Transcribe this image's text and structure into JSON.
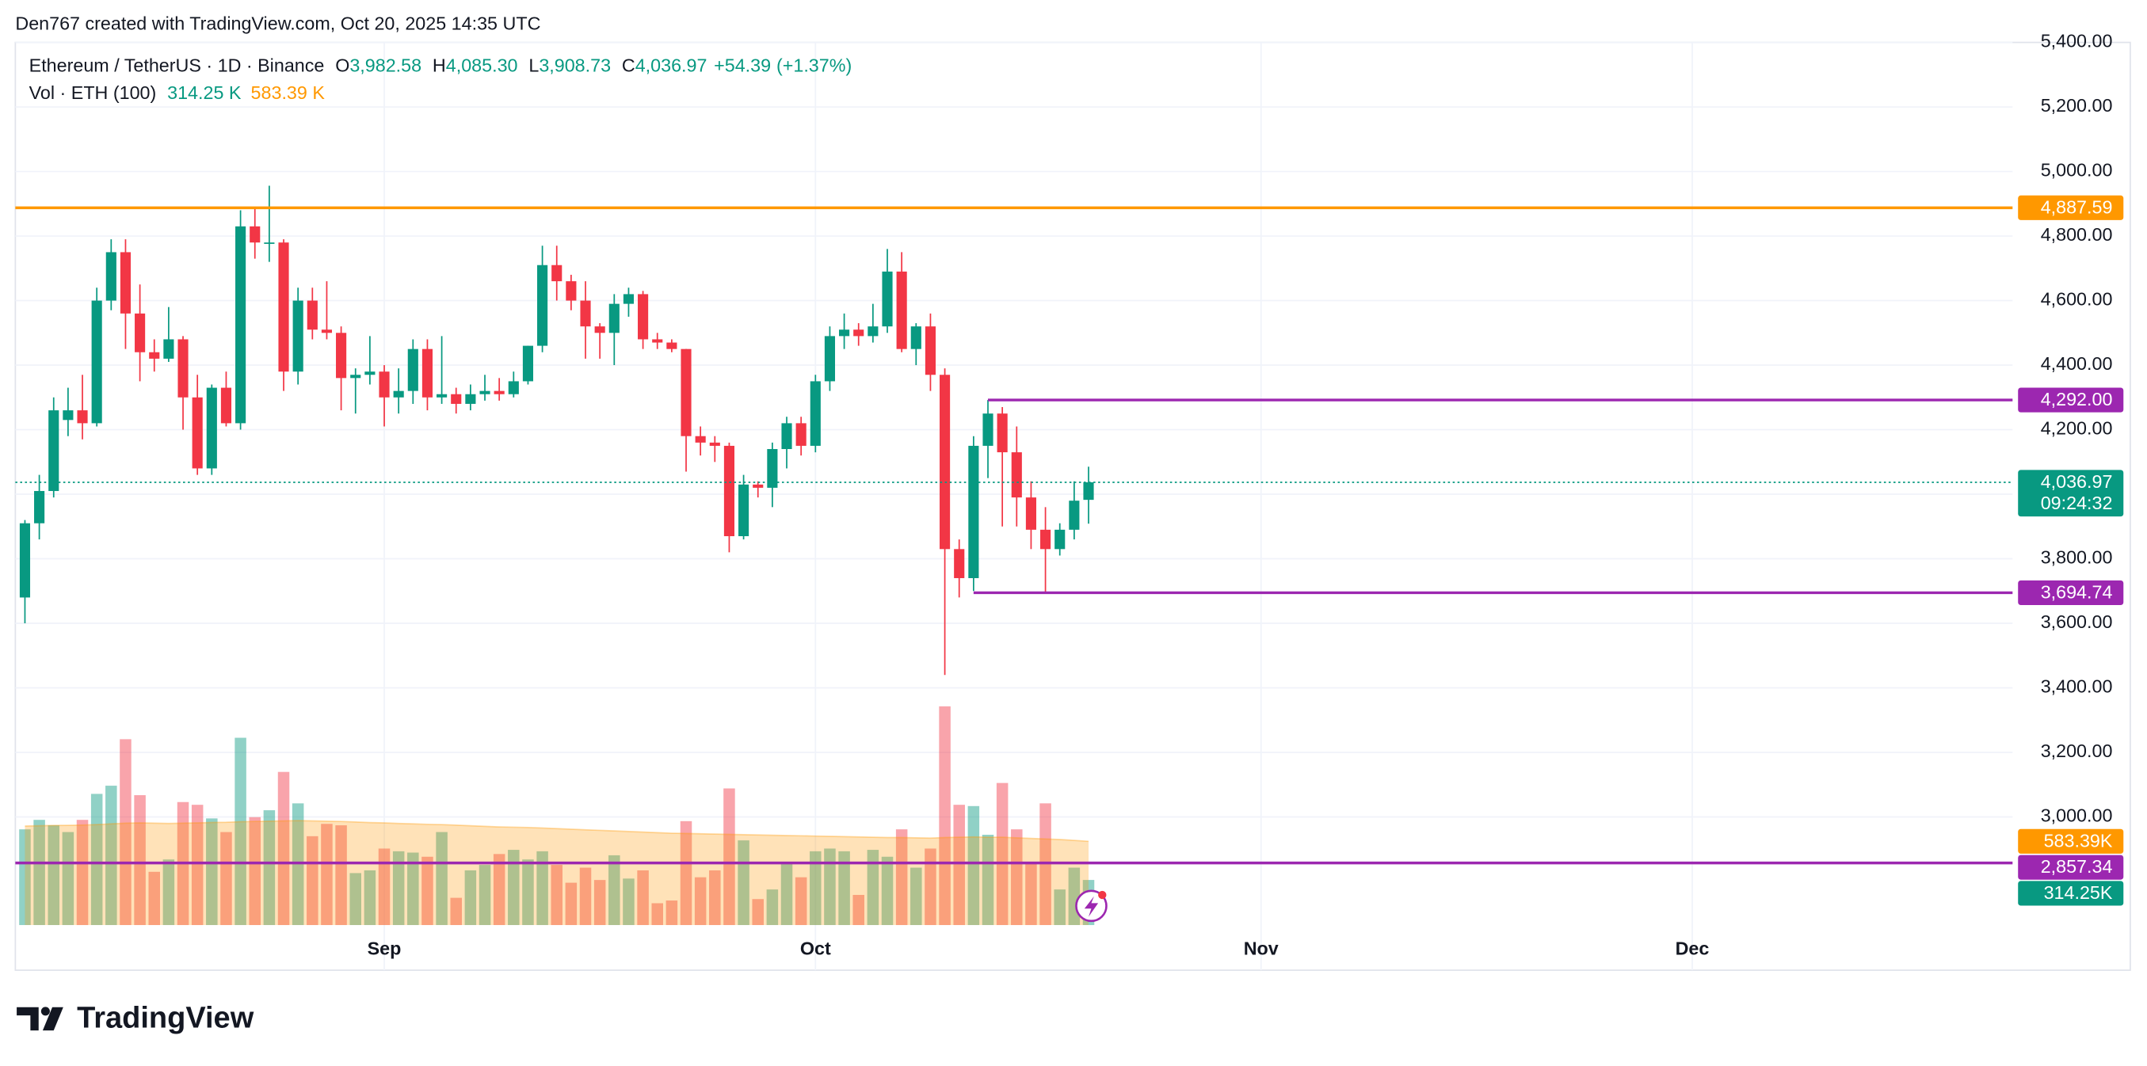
{
  "chart_data": {
    "type": "candlestick",
    "attribution": "Den767 created with TradingView.com, Oct 20, 2025 14:35 UTC",
    "brand": "TradingView",
    "legend": {
      "symbol": "Ethereum / TetherUS · 1D · Binance",
      "fields": [
        {
          "key": "O",
          "value": 3982.58,
          "label": "3,982.58"
        },
        {
          "key": "H",
          "value": 4085.3,
          "label": "4,085.30"
        },
        {
          "key": "L",
          "value": 3908.73,
          "label": "3,908.73"
        },
        {
          "key": "C",
          "value": 4036.97,
          "label": "4,036.97"
        }
      ],
      "change": {
        "value": 54.39,
        "label": "+54.39"
      },
      "change_pct": {
        "value": 1.37,
        "label": "(+1.37%)"
      }
    },
    "up_color": "#089981",
    "down_color": "#f23645",
    "xlim": [
      0,
      138
    ],
    "xticks": [
      {
        "value": 25,
        "label": "Sep"
      },
      {
        "value": 55,
        "label": "Oct"
      },
      {
        "value": 86,
        "label": "Nov"
      },
      {
        "value": 116,
        "label": "Dec"
      }
    ],
    "ylim": [
      2665,
      5400
    ],
    "yticks": [
      {
        "value": 3000,
        "label": "3,000.00"
      },
      {
        "value": 3200,
        "label": "3,200.00"
      },
      {
        "value": 3400,
        "label": "3,400.00"
      },
      {
        "value": 3600,
        "label": "3,600.00"
      },
      {
        "value": 3800,
        "label": "3,800.00"
      },
      {
        "value": 4000,
        "label": "4,000.00"
      },
      {
        "value": 4200,
        "label": "4,200.00"
      },
      {
        "value": 4400,
        "label": "4,400.00"
      },
      {
        "value": 4600,
        "label": "4,600.00"
      },
      {
        "value": 4800,
        "label": "4,800.00"
      },
      {
        "value": 5000,
        "label": "5,000.00"
      },
      {
        "value": 5200,
        "label": "5,200.00"
      },
      {
        "value": 5400,
        "label": "5,400.00"
      }
    ],
    "grid": true,
    "ohlc": {
      "open": [
        3680,
        3910,
        4010,
        4230,
        4260,
        4220,
        4600,
        4750,
        4560,
        4440,
        4420,
        4480,
        4300,
        4080,
        4330,
        4220,
        4830,
        4780,
        4780,
        4380,
        4600,
        4510,
        4500,
        4360,
        4370,
        4380,
        4300,
        4320,
        4450,
        4300,
        4310,
        4280,
        4310,
        4320,
        4310,
        4350,
        4460,
        4710,
        4660,
        4600,
        4520,
        4500,
        4590,
        4620,
        4480,
        4470,
        4450,
        4180,
        4160,
        4150,
        3870,
        4030,
        4020,
        4140,
        4220,
        4150,
        4350,
        4490,
        4510,
        4490,
        4520,
        4690,
        4450,
        4520,
        4370,
        3830,
        3740,
        4150,
        4250,
        4130,
        3990,
        3890,
        3830,
        3890,
        3982.58
      ],
      "high": [
        3920,
        4060,
        4300,
        4330,
        4370,
        4640,
        4790,
        4790,
        4650,
        4480,
        4580,
        4490,
        4370,
        4340,
        4380,
        4880,
        4890,
        4956,
        4790,
        4640,
        4640,
        4660,
        4520,
        4390,
        4490,
        4400,
        4390,
        4480,
        4480,
        4490,
        4330,
        4340,
        4370,
        4360,
        4380,
        4460,
        4770,
        4770,
        4680,
        4660,
        4530,
        4620,
        4640,
        4630,
        4500,
        4480,
        4450,
        4210,
        4180,
        4160,
        4060,
        4040,
        4160,
        4240,
        4240,
        4370,
        4520,
        4560,
        4530,
        4590,
        4760,
        4750,
        4530,
        4560,
        4390,
        3860,
        4180,
        4292,
        4270,
        4210,
        4040,
        3960,
        3910,
        4040,
        4085.3
      ],
      "low": [
        3600,
        3860,
        3990,
        4180,
        4170,
        4210,
        4570,
        4450,
        4350,
        4380,
        4410,
        4200,
        4060,
        4060,
        4210,
        4200,
        4730,
        4720,
        4320,
        4340,
        4480,
        4480,
        4260,
        4250,
        4340,
        4210,
        4250,
        4280,
        4260,
        4280,
        4250,
        4260,
        4290,
        4290,
        4300,
        4340,
        4440,
        4600,
        4570,
        4420,
        4420,
        4400,
        4550,
        4450,
        4450,
        4440,
        4070,
        4120,
        4100,
        3820,
        3860,
        3990,
        3960,
        4080,
        4120,
        4130,
        4320,
        4450,
        4460,
        4470,
        4500,
        4440,
        4400,
        4320,
        3440,
        3680,
        3700,
        4050,
        3900,
        3900,
        3830,
        3694.74,
        3810,
        3860,
        3908.73
      ],
      "close": [
        3910,
        4010,
        4260,
        4260,
        4220,
        4600,
        4750,
        4560,
        4440,
        4420,
        4480,
        4300,
        4080,
        4330,
        4220,
        4830,
        4780,
        4780,
        4380,
        4600,
        4510,
        4500,
        4360,
        4370,
        4380,
        4300,
        4320,
        4450,
        4300,
        4310,
        4280,
        4310,
        4320,
        4310,
        4350,
        4460,
        4710,
        4660,
        4600,
        4520,
        4500,
        4590,
        4620,
        4480,
        4470,
        4450,
        4180,
        4160,
        4150,
        3870,
        4030,
        4020,
        4140,
        4220,
        4150,
        4350,
        4490,
        4510,
        4490,
        4520,
        4690,
        4450,
        4520,
        4370,
        3830,
        3740,
        4150,
        4250,
        4130,
        3990,
        3890,
        3830,
        3890,
        3980,
        4036.97
      ]
    },
    "volume": {
      "title": "Vol · ETH (100)",
      "ylim": [
        0,
        6150
      ],
      "values": [
        667,
        733,
        695,
        648,
        733,
        914,
        971,
        1295,
        905,
        371,
        457,
        857,
        838,
        743,
        648,
        1305,
        752,
        800,
        1067,
        848,
        619,
        705,
        695,
        362,
        381,
        533,
        514,
        505,
        476,
        648,
        190,
        381,
        419,
        495,
        524,
        457,
        514,
        419,
        295,
        400,
        314,
        486,
        324,
        381,
        152,
        171,
        724,
        333,
        381,
        952,
        590,
        181,
        248,
        438,
        333,
        514,
        533,
        514,
        210,
        524,
        476,
        667,
        400,
        533,
        1524,
        838,
        829,
        629,
        990,
        667,
        438,
        848,
        248,
        400,
        314.25
      ],
      "last": {
        "value": 314.25,
        "legend_label": "314.25 K",
        "axis_label": "314.25K"
      },
      "ma": {
        "color": "#ff9800",
        "values": [
          690,
          692,
          694,
          695,
          697,
          700,
          705,
          710,
          712,
          710,
          708,
          710,
          712,
          715,
          716,
          720,
          722,
          724,
          726,
          728,
          726,
          724,
          722,
          718,
          714,
          712,
          708,
          705,
          702,
          700,
          696,
          692,
          688,
          684,
          682,
          680,
          676,
          672,
          668,
          664,
          660,
          656,
          652,
          648,
          644,
          640,
          638,
          636,
          634,
          632,
          630,
          628,
          626,
          624,
          622,
          620,
          618,
          616,
          614,
          612,
          610,
          610,
          608,
          606,
          610,
          612,
          614,
          612,
          612,
          608,
          604,
          600,
          596,
          590,
          583.39
        ],
        "last": {
          "value": 583.39,
          "legend_label": "583.39 K",
          "axis_label": "583.39K"
        }
      }
    },
    "price_levels": [
      {
        "value": 4887.59,
        "label": "4,887.59",
        "color": "#ff9800"
      },
      {
        "value": 4292.0,
        "label": "4,292.00",
        "color": "#9c27b0",
        "from": 67
      },
      {
        "value": 3694.74,
        "label": "3,694.74",
        "color": "#9c27b0",
        "from": 66
      },
      {
        "value": 2857.34,
        "label": "2,857.34",
        "color": "#9c27b0"
      }
    ],
    "last_price": {
      "value": 4036.97,
      "label": "4,036.97",
      "countdown": "09:24:32"
    }
  }
}
